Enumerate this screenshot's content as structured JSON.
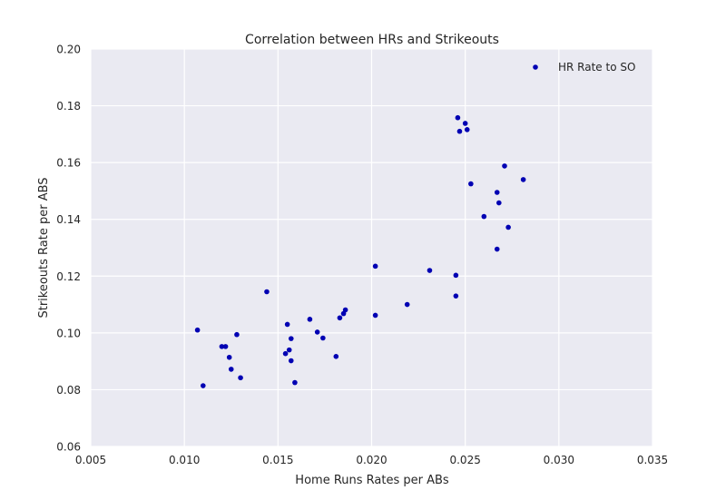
{
  "chart_data": {
    "type": "scatter",
    "title": "Correlation between HRs and Strikeouts",
    "xlabel": "Home Runs Rates per ABs",
    "ylabel": "Strikeouts Rate per ABS",
    "xlim": [
      0.005,
      0.035
    ],
    "ylim": [
      0.06,
      0.2
    ],
    "x_ticks": [
      "0.005",
      "0.010",
      "0.015",
      "0.020",
      "0.025",
      "0.030",
      "0.035"
    ],
    "y_ticks": [
      "0.06",
      "0.08",
      "0.10",
      "0.12",
      "0.14",
      "0.16",
      "0.18",
      "0.20"
    ],
    "grid": true,
    "legend_position": "top-right",
    "series": [
      {
        "name": "HR Rate to SO",
        "color": "#0000b3",
        "points": [
          {
            "x": 0.0107,
            "y": 0.101
          },
          {
            "x": 0.011,
            "y": 0.0814
          },
          {
            "x": 0.012,
            "y": 0.0952
          },
          {
            "x": 0.0122,
            "y": 0.0952
          },
          {
            "x": 0.0124,
            "y": 0.0914
          },
          {
            "x": 0.0125,
            "y": 0.0872
          },
          {
            "x": 0.0128,
            "y": 0.0994
          },
          {
            "x": 0.013,
            "y": 0.0842
          },
          {
            "x": 0.0144,
            "y": 0.1145
          },
          {
            "x": 0.0154,
            "y": 0.0927
          },
          {
            "x": 0.0155,
            "y": 0.103
          },
          {
            "x": 0.0156,
            "y": 0.094
          },
          {
            "x": 0.0157,
            "y": 0.098
          },
          {
            "x": 0.0157,
            "y": 0.0902
          },
          {
            "x": 0.0159,
            "y": 0.0825
          },
          {
            "x": 0.0167,
            "y": 0.1048
          },
          {
            "x": 0.0171,
            "y": 0.1003
          },
          {
            "x": 0.0174,
            "y": 0.0982
          },
          {
            "x": 0.0181,
            "y": 0.0917
          },
          {
            "x": 0.0183,
            "y": 0.1053
          },
          {
            "x": 0.0185,
            "y": 0.1068
          },
          {
            "x": 0.0186,
            "y": 0.1081
          },
          {
            "x": 0.0202,
            "y": 0.1235
          },
          {
            "x": 0.0202,
            "y": 0.1062
          },
          {
            "x": 0.0219,
            "y": 0.11
          },
          {
            "x": 0.0231,
            "y": 0.122
          },
          {
            "x": 0.0245,
            "y": 0.1203
          },
          {
            "x": 0.0245,
            "y": 0.113
          },
          {
            "x": 0.0246,
            "y": 0.1758
          },
          {
            "x": 0.0247,
            "y": 0.171
          },
          {
            "x": 0.025,
            "y": 0.1738
          },
          {
            "x": 0.0251,
            "y": 0.1716
          },
          {
            "x": 0.0253,
            "y": 0.1525
          },
          {
            "x": 0.026,
            "y": 0.141
          },
          {
            "x": 0.0267,
            "y": 0.1295
          },
          {
            "x": 0.0267,
            "y": 0.1495
          },
          {
            "x": 0.0268,
            "y": 0.1458
          },
          {
            "x": 0.0271,
            "y": 0.1588
          },
          {
            "x": 0.0273,
            "y": 0.1372
          },
          {
            "x": 0.0281,
            "y": 0.154
          }
        ]
      }
    ]
  }
}
